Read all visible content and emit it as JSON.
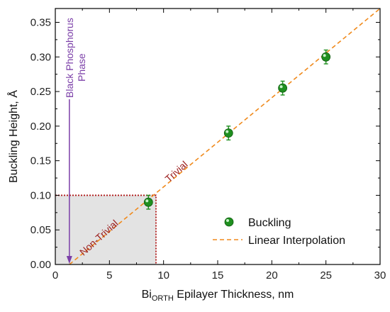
{
  "chart_data": {
    "type": "scatter",
    "xlabel_main": "Bi",
    "xlabel_sub": "ORTH",
    "xlabel_rest": " Epilayer Thickness, nm",
    "ylabel": "Buckling Height, Å",
    "xlim": [
      0,
      30
    ],
    "ylim": [
      0,
      0.37
    ],
    "x_ticks": [
      0,
      5,
      10,
      15,
      20,
      25,
      30
    ],
    "y_ticks": [
      0.0,
      0.05,
      0.1,
      0.15,
      0.2,
      0.25,
      0.3,
      0.35
    ],
    "x_tick_labels": [
      "0",
      "5",
      "10",
      "15",
      "20",
      "25",
      "30"
    ],
    "y_tick_labels": [
      "0.00",
      "0.05",
      "0.10",
      "0.15",
      "0.20",
      "0.25",
      "0.30",
      "0.35"
    ],
    "series": [
      {
        "name": "Buckling",
        "color": "#1f8f1f",
        "points": [
          {
            "x": 8.6,
            "y": 0.09,
            "err": 0.01
          },
          {
            "x": 16.0,
            "y": 0.19,
            "err": 0.01
          },
          {
            "x": 21.0,
            "y": 0.255,
            "err": 0.01
          },
          {
            "x": 25.0,
            "y": 0.3,
            "err": 0.01
          }
        ]
      },
      {
        "name": "Linear Interpolation",
        "color": "#f08a1c",
        "line": {
          "x0": 1.3,
          "y0": 0.0,
          "x1": 30.0,
          "y1": 0.37
        }
      }
    ],
    "non_trivial_region": {
      "x0": 0,
      "x1": 9.3,
      "y0": 0,
      "y1": 0.1,
      "fill": "#e3e3e3",
      "border": "#b01818"
    },
    "black_phosphorus_x": 1.3,
    "annotations": {
      "trivial": "Trivial",
      "non_trivial": "Non-Trivial",
      "bp_line1": "Black Phosphorus",
      "bp_line2": "Phase"
    },
    "legend_position": "bottom-right"
  }
}
